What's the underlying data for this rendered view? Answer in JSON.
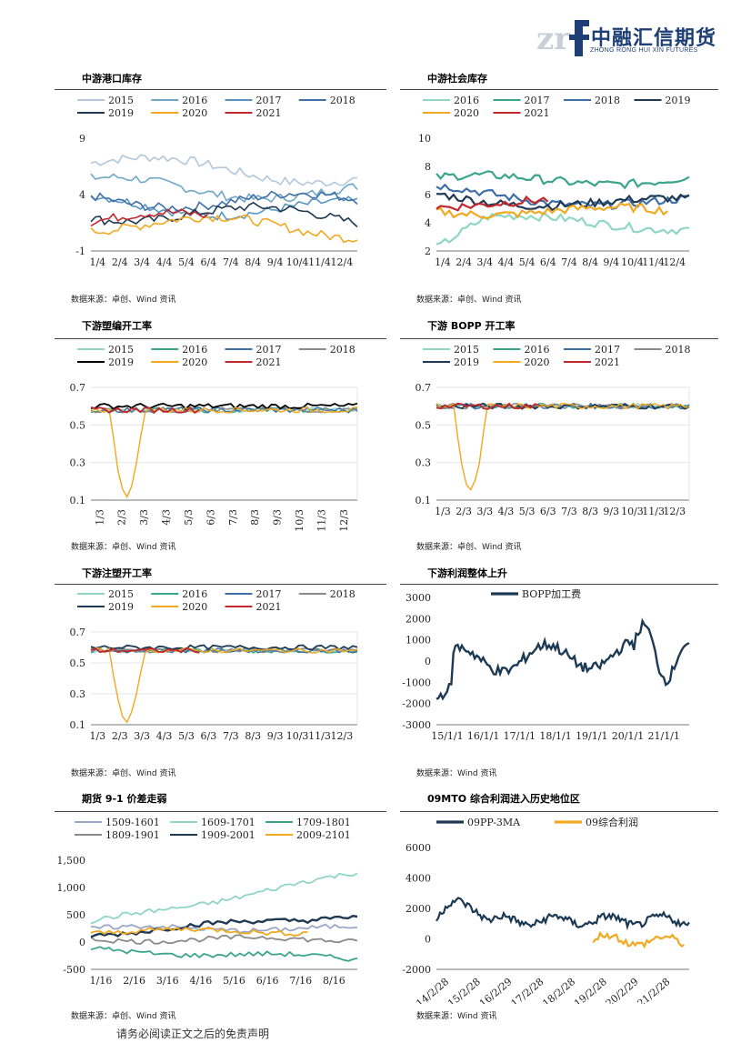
{
  "header": {
    "logo_cn": "中融汇信期货",
    "logo_en": "ZHONG RONG HUI XIN FUTURES",
    "logo_mark": "zrf"
  },
  "footer": {
    "disclaimer": "请务必阅读正文之后的免责声明"
  },
  "colors": {
    "c2015": "#b3c7dd",
    "c2016": "#6fa8c7",
    "c2017": "#5796c0",
    "c2018": "#3f6fa8",
    "c2019": "#1f3a54",
    "c2020": "#f0a920",
    "c2021": "#c0282d",
    "teal": "#3aa58a",
    "mint": "#8fd6c3",
    "grey": "#8a8a8a",
    "navy": "#1d3a55"
  },
  "panels": [
    {
      "id": "p1",
      "title": "中游港口库存",
      "source": "数据来源：卓创、Wind 资讯",
      "chart_data": {
        "type": "line",
        "legend": [
          "2015",
          "2016",
          "2017",
          "2018",
          "2019",
          "2020",
          "2021"
        ],
        "yticks": [
          "9",
          "4",
          "-1"
        ],
        "ylim": [
          -1,
          9
        ],
        "xticks": [
          "1/4",
          "2/4",
          "3/4",
          "4/4",
          "5/4",
          "6/4",
          "7/4",
          "8/4",
          "9/4",
          "10/4",
          "11/4",
          "12/4"
        ]
      }
    },
    {
      "id": "p2",
      "title": "中游社会库存",
      "source": "数据来源：卓创、Wind 资讯",
      "chart_data": {
        "type": "line",
        "legend": [
          "2016",
          "2017",
          "2018",
          "2019",
          "2020",
          "2021"
        ],
        "yticks": [
          "10",
          "8",
          "6",
          "4",
          "2"
        ],
        "ylim": [
          2,
          10
        ],
        "xticks": [
          "1/4",
          "2/4",
          "3/4",
          "4/4",
          "5/4",
          "6/4",
          "7/4",
          "8/4",
          "9/4",
          "10/4",
          "11/4",
          "12/4"
        ]
      }
    },
    {
      "id": "p3",
      "title": "下游塑编开工率",
      "source": "数据来源：卓创、Wind 资讯",
      "chart_data": {
        "type": "line",
        "legend": [
          "2015",
          "2016",
          "2017",
          "2018",
          "2019",
          "2020",
          "2021"
        ],
        "yticks": [
          "0.7",
          "0.5",
          "0.3",
          "0.1"
        ],
        "ylim": [
          0.1,
          0.7
        ],
        "xticks": [
          "1/3",
          "2/3",
          "3/3",
          "4/3",
          "5/3",
          "6/3",
          "7/3",
          "8/3",
          "9/3",
          "10/3",
          "11/3",
          "12/3"
        ]
      }
    },
    {
      "id": "p4",
      "title": "下游 BOPP 开工率",
      "source": "数据来源：卓创、Wind 资讯",
      "chart_data": {
        "type": "line",
        "legend": [
          "2015",
          "2016",
          "2017",
          "2018",
          "2019",
          "2020",
          "2021"
        ],
        "yticks": [
          "0.7",
          "0.5",
          "0.3",
          "0.1"
        ],
        "ylim": [
          0.1,
          0.7
        ],
        "xticks": [
          "1/3",
          "2/3",
          "3/3",
          "4/3",
          "5/3",
          "6/3",
          "7/3",
          "8/3",
          "9/3",
          "10/3",
          "11/3",
          "12/3"
        ]
      }
    },
    {
      "id": "p5",
      "title": "下游注塑开工率",
      "source": "数据来源：卓创、Wind 资讯",
      "chart_data": {
        "type": "line",
        "legend": [
          "2015",
          "2016",
          "2017",
          "2018",
          "2019",
          "2020",
          "2021"
        ],
        "yticks": [
          "0.7",
          "0.5",
          "0.3",
          "0.1"
        ],
        "ylim": [
          0.1,
          0.7
        ],
        "xticks": [
          "1/3",
          "2/3",
          "3/3",
          "4/3",
          "5/3",
          "6/3",
          "7/3",
          "8/3",
          "9/3",
          "10/3",
          "11/3",
          "12/3"
        ]
      }
    },
    {
      "id": "p6",
      "title": "下游利润整体上升",
      "source": "数据来源：Wind 资讯",
      "chart_data": {
        "type": "line",
        "legend": [
          "BOPP加工费"
        ],
        "yticks": [
          "3000",
          "2000",
          "1000",
          "0",
          "-1000",
          "-2000",
          "-3000"
        ],
        "ylim": [
          -3000,
          3000
        ],
        "xticks": [
          "15/1/1",
          "16/1/1",
          "17/1/1",
          "18/1/1",
          "19/1/1",
          "20/1/1",
          "21/1/1"
        ]
      }
    },
    {
      "id": "p7",
      "title": "期货 9-1 价差走弱",
      "source": "数据来源：卓创、Wind 资讯",
      "chart_data": {
        "type": "line",
        "legend": [
          "1509-1601",
          "1609-1701",
          "1709-1801",
          "1809-1901",
          "1909-2001",
          "2009-2101"
        ],
        "yticks": [
          "1,500",
          "1,000",
          "500",
          "0",
          "-500"
        ],
        "ylim": [
          -500,
          1500
        ],
        "xticks": [
          "1/16",
          "2/16",
          "3/16",
          "4/16",
          "5/16",
          "6/16",
          "7/16",
          "8/16"
        ]
      }
    },
    {
      "id": "p8",
      "title": "09MTO 综合利润进入历史地位区",
      "source": "数据来源：Wind 资讯",
      "chart_data": {
        "type": "line",
        "legend": [
          "09PP-3MA",
          "09综合利润"
        ],
        "yticks": [
          "6000",
          "4000",
          "2000",
          "0",
          "-2000"
        ],
        "ylim": [
          -2000,
          6000
        ],
        "xticks": [
          "14/2/28",
          "15/2/28",
          "16/2/29",
          "17/2/28",
          "18/2/28",
          "19/2/28",
          "20/2/29",
          "21/2/28"
        ]
      }
    }
  ]
}
